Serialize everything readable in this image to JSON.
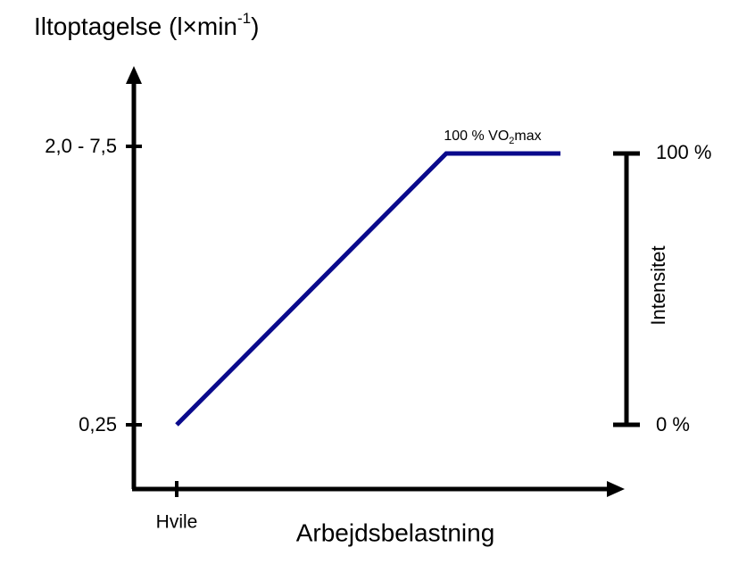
{
  "title": {
    "main": "Iltoptagelse  (l×min",
    "superscript": "-1",
    "close": ")"
  },
  "y_axis": {
    "tick_labels": [
      "2,0 - 7,5",
      "0,25"
    ]
  },
  "x_axis": {
    "tick_label": "Hvile",
    "label": "Arbejdsbelastning"
  },
  "annotation": {
    "before": "100 % VO",
    "subscript": "2",
    "after": "max"
  },
  "intensity_scale": {
    "top": "100 %",
    "bottom": "0 %",
    "label": "Intensitet"
  }
}
